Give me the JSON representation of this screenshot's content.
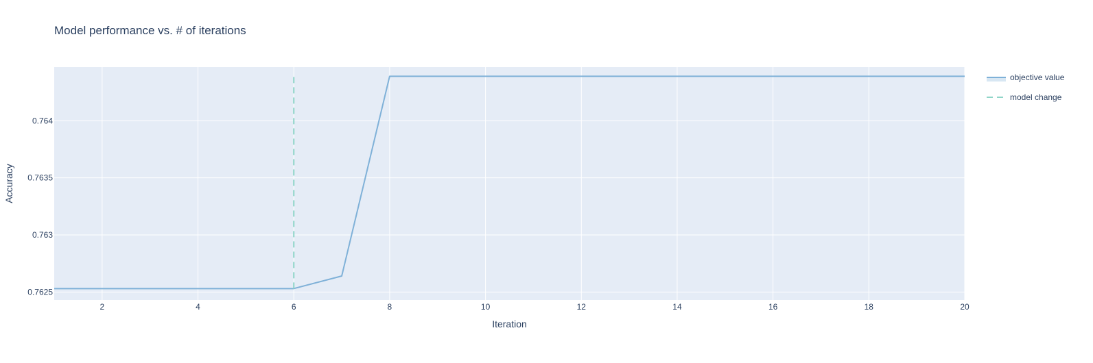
{
  "chart_data": {
    "type": "line",
    "title": "Model performance vs. # of iterations",
    "xlabel": "Iteration",
    "ylabel": "Accuracy",
    "xlim": [
      1,
      20
    ],
    "ylim": [
      0.76243,
      0.76447
    ],
    "x_ticks": [
      2,
      4,
      6,
      8,
      10,
      12,
      14,
      16,
      18,
      20
    ],
    "y_ticks": [
      0.7625,
      0.763,
      0.7635,
      0.764
    ],
    "y_tick_labels": [
      "0.7625",
      "0.763",
      "0.7635",
      "0.764"
    ],
    "grid": true,
    "legend_position": "top-right, outside plot",
    "plot_background": "#e5ecf6",
    "series": [
      {
        "name": "objective value",
        "color": "#7fb1d8",
        "style": "solid",
        "x": [
          1,
          2,
          3,
          4,
          5,
          6,
          7,
          8,
          9,
          10,
          11,
          12,
          13,
          14,
          15,
          16,
          17,
          18,
          19,
          20
        ],
        "y": [
          0.76253,
          0.76253,
          0.76253,
          0.76253,
          0.76253,
          0.76253,
          0.76264,
          0.76439,
          0.76439,
          0.76439,
          0.76439,
          0.76439,
          0.76439,
          0.76439,
          0.76439,
          0.76439,
          0.76439,
          0.76439,
          0.76439,
          0.76439
        ]
      },
      {
        "name": "model change",
        "color": "#8fd5c8",
        "style": "dashed",
        "x": [
          6,
          6
        ],
        "y": [
          0.76253,
          0.76439
        ]
      }
    ]
  }
}
